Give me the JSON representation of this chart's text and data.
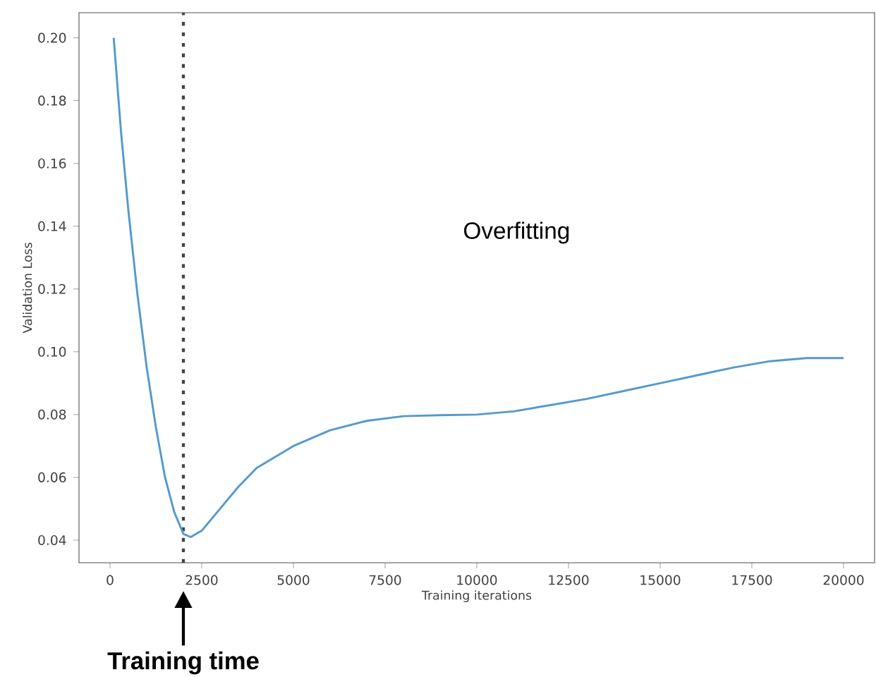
{
  "chart_data": {
    "type": "line",
    "xlabel": "Training iterations",
    "ylabel": "Validation Loss",
    "annotations": [
      "Overfitting",
      "Training time"
    ],
    "x": [
      100,
      300,
      500,
      750,
      1000,
      1250,
      1500,
      1750,
      2000,
      2200,
      2500,
      3000,
      3500,
      4000,
      5000,
      6000,
      7000,
      8000,
      9000,
      10000,
      11000,
      12000,
      13000,
      14000,
      15000,
      16000,
      17000,
      18000,
      19000,
      20000
    ],
    "values": [
      0.2,
      0.17,
      0.145,
      0.118,
      0.095,
      0.076,
      0.06,
      0.049,
      0.042,
      0.041,
      0.043,
      0.05,
      0.057,
      0.063,
      0.07,
      0.075,
      0.078,
      0.0795,
      0.0798,
      0.08,
      0.081,
      0.083,
      0.085,
      0.0875,
      0.09,
      0.0925,
      0.095,
      0.097,
      0.098,
      0.098
    ],
    "color": "#5599cc",
    "marker": "none",
    "line_style": "solid",
    "grid": false,
    "xlim": [
      -846,
      20846
    ],
    "ylim": [
      0.0328,
      0.208
    ],
    "xticks": [
      0,
      2500,
      5000,
      7500,
      10000,
      12500,
      15000,
      17500,
      20000
    ],
    "yticks": [
      {
        "value": 0.04,
        "label": "0.04"
      },
      {
        "value": 0.06,
        "label": "0.06"
      },
      {
        "value": 0.08,
        "label": "0.08"
      },
      {
        "value": 0.1,
        "label": "0.10"
      },
      {
        "value": 0.12,
        "label": "0.12"
      },
      {
        "value": 0.14,
        "label": "0.14"
      },
      {
        "value": 0.16,
        "label": "0.16"
      },
      {
        "value": 0.18,
        "label": "0.18"
      },
      {
        "value": 0.2,
        "label": "0.20"
      }
    ],
    "ref_lines": [
      {
        "axis": "x",
        "value": 2000,
        "line_style": "dotted",
        "color": "#444444"
      }
    ]
  }
}
